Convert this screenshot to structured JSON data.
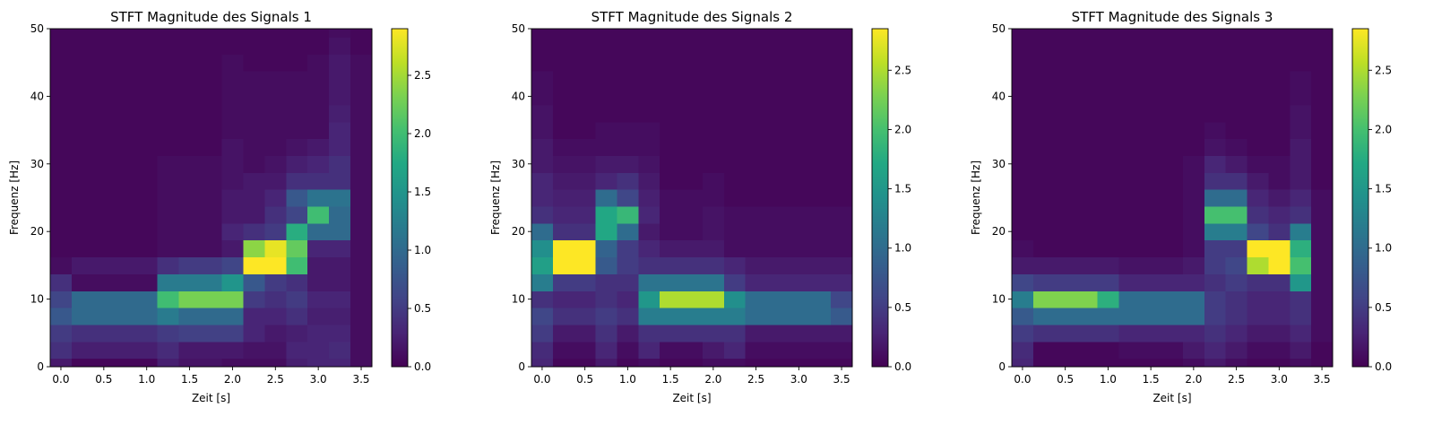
{
  "chart_data": [
    {
      "type": "heatmap",
      "title": "STFT Magnitude des Signals 1",
      "xlabel": "Zeit [s]",
      "ylabel": "Frequenz [Hz]",
      "xlim": [
        -0.125,
        3.625
      ],
      "ylim": [
        0,
        50
      ],
      "xticks": [
        "0.0",
        "0.5",
        "1.0",
        "1.5",
        "2.0",
        "2.5",
        "3.0",
        "3.5"
      ],
      "yticks": [
        "0",
        "10",
        "20",
        "30",
        "40",
        "50"
      ],
      "colorbar": {
        "range": [
          0,
          2.9
        ],
        "ticks": [
          "0.0",
          "0.5",
          "1.0",
          "1.5",
          "2.0",
          "2.5"
        ],
        "colormap": "viridis"
      },
      "t": [
        0,
        0.25,
        0.5,
        0.75,
        1.0,
        1.25,
        1.5,
        1.75,
        2.0,
        2.25,
        2.5,
        2.75,
        3.0,
        3.25,
        3.5
      ],
      "f": [
        0,
        2.5,
        5,
        7.5,
        10,
        12.5,
        15,
        17.5,
        20,
        22.5,
        25,
        27.5,
        30,
        32.5,
        35,
        37.5,
        40,
        42.5,
        45,
        47.5,
        50
      ],
      "magnitude": [
        [
          0.2,
          0.05,
          0.05,
          0.05,
          0.05,
          0.25,
          0.15,
          0.15,
          0.1,
          0.1,
          0.1,
          0.25,
          0.3,
          0.3,
          0.1
        ],
        [
          0.4,
          0.25,
          0.25,
          0.25,
          0.25,
          0.35,
          0.2,
          0.2,
          0.2,
          0.15,
          0.15,
          0.3,
          0.3,
          0.35,
          0.1
        ],
        [
          0.5,
          0.4,
          0.4,
          0.4,
          0.4,
          0.5,
          0.55,
          0.55,
          0.55,
          0.3,
          0.2,
          0.25,
          0.3,
          0.3,
          0.1
        ],
        [
          0.8,
          1.0,
          1.0,
          1.0,
          1.0,
          1.2,
          1.0,
          1.0,
          1.0,
          0.3,
          0.3,
          0.4,
          0.25,
          0.25,
          0.1
        ],
        [
          0.6,
          1.0,
          1.0,
          1.0,
          1.0,
          2.0,
          2.3,
          2.3,
          2.3,
          0.5,
          0.4,
          0.5,
          0.3,
          0.3,
          0.1
        ],
        [
          0.4,
          0.1,
          0.1,
          0.1,
          0.1,
          1.2,
          1.2,
          1.2,
          1.5,
          0.8,
          0.5,
          0.4,
          0.2,
          0.2,
          0.1
        ],
        [
          0.1,
          0.2,
          0.2,
          0.2,
          0.2,
          0.4,
          0.5,
          0.5,
          0.6,
          2.9,
          2.9,
          2.0,
          0.2,
          0.2,
          0.1
        ],
        [
          0.05,
          0.05,
          0.05,
          0.05,
          0.05,
          0.1,
          0.1,
          0.1,
          0.2,
          2.4,
          2.8,
          2.2,
          0.3,
          0.3,
          0.1
        ],
        [
          0.05,
          0.05,
          0.05,
          0.05,
          0.05,
          0.1,
          0.1,
          0.1,
          0.3,
          0.4,
          0.5,
          1.8,
          1.0,
          1.0,
          0.1
        ],
        [
          0.05,
          0.05,
          0.05,
          0.05,
          0.05,
          0.1,
          0.1,
          0.1,
          0.2,
          0.2,
          0.4,
          0.6,
          2.0,
          1.0,
          0.1
        ],
        [
          0.05,
          0.05,
          0.05,
          0.05,
          0.05,
          0.1,
          0.1,
          0.1,
          0.2,
          0.2,
          0.3,
          0.8,
          1.1,
          1.1,
          0.1
        ],
        [
          0.05,
          0.05,
          0.05,
          0.05,
          0.05,
          0.1,
          0.1,
          0.1,
          0.15,
          0.2,
          0.2,
          0.4,
          0.4,
          0.4,
          0.1
        ],
        [
          0.05,
          0.05,
          0.05,
          0.05,
          0.05,
          0.1,
          0.1,
          0.1,
          0.15,
          0.1,
          0.15,
          0.25,
          0.3,
          0.4,
          0.1
        ],
        [
          0.05,
          0.05,
          0.05,
          0.05,
          0.05,
          0.05,
          0.05,
          0.05,
          0.15,
          0.1,
          0.1,
          0.15,
          0.2,
          0.3,
          0.1
        ],
        [
          0.05,
          0.05,
          0.05,
          0.05,
          0.05,
          0.05,
          0.05,
          0.05,
          0.1,
          0.1,
          0.1,
          0.1,
          0.1,
          0.3,
          0.1
        ],
        [
          0.05,
          0.05,
          0.05,
          0.05,
          0.05,
          0.05,
          0.05,
          0.05,
          0.1,
          0.1,
          0.1,
          0.1,
          0.1,
          0.25,
          0.1
        ],
        [
          0.05,
          0.05,
          0.05,
          0.05,
          0.05,
          0.05,
          0.05,
          0.05,
          0.1,
          0.1,
          0.1,
          0.1,
          0.1,
          0.2,
          0.1
        ],
        [
          0.05,
          0.05,
          0.05,
          0.05,
          0.05,
          0.05,
          0.05,
          0.05,
          0.1,
          0.1,
          0.1,
          0.1,
          0.1,
          0.2,
          0.1
        ],
        [
          0.05,
          0.05,
          0.05,
          0.05,
          0.05,
          0.05,
          0.05,
          0.05,
          0.1,
          0.05,
          0.05,
          0.05,
          0.1,
          0.2,
          0.1
        ],
        [
          0.05,
          0.05,
          0.05,
          0.05,
          0.05,
          0.05,
          0.05,
          0.05,
          0.05,
          0.05,
          0.05,
          0.05,
          0.05,
          0.15,
          0.05
        ],
        [
          0.05,
          0.05,
          0.05,
          0.05,
          0.05,
          0.05,
          0.05,
          0.05,
          0.05,
          0.05,
          0.05,
          0.05,
          0.05,
          0.1,
          0.05
        ]
      ]
    },
    {
      "type": "heatmap",
      "title": "STFT Magnitude des Signals 2",
      "xlabel": "Zeit [s]",
      "ylabel": "Frequenz [Hz]",
      "xlim": [
        -0.125,
        3.625
      ],
      "ylim": [
        0,
        50
      ],
      "xticks": [
        "0.0",
        "0.5",
        "1.0",
        "1.5",
        "2.0",
        "2.5",
        "3.0",
        "3.5"
      ],
      "yticks": [
        "0",
        "10",
        "20",
        "30",
        "40",
        "50"
      ],
      "colorbar": {
        "range": [
          0,
          2.85
        ],
        "ticks": [
          "0.0",
          "0.5",
          "1.0",
          "1.5",
          "2.0",
          "2.5"
        ],
        "colormap": "viridis"
      },
      "t": [
        0,
        0.25,
        0.5,
        0.75,
        1.0,
        1.25,
        1.5,
        1.75,
        2.0,
        2.25,
        2.5,
        2.75,
        3.0,
        3.25,
        3.5
      ],
      "f": [
        0,
        2.5,
        5,
        7.5,
        10,
        12.5,
        15,
        17.5,
        20,
        22.5,
        25,
        27.5,
        30,
        32.5,
        35,
        37.5,
        40,
        42.5,
        45,
        47.5,
        50
      ],
      "magnitude": [
        [
          0.3,
          0.05,
          0.05,
          0.2,
          0.05,
          0.1,
          0.05,
          0.05,
          0.1,
          0.1,
          0.05,
          0.05,
          0.05,
          0.05,
          0.05
        ],
        [
          0.35,
          0.1,
          0.1,
          0.3,
          0.1,
          0.3,
          0.1,
          0.1,
          0.2,
          0.3,
          0.1,
          0.1,
          0.1,
          0.1,
          0.1
        ],
        [
          0.5,
          0.2,
          0.2,
          0.4,
          0.2,
          0.4,
          0.4,
          0.4,
          0.4,
          0.4,
          0.2,
          0.2,
          0.2,
          0.2,
          0.2
        ],
        [
          0.6,
          0.4,
          0.4,
          0.5,
          0.4,
          1.2,
          1.2,
          1.2,
          1.2,
          1.2,
          1.0,
          1.0,
          1.0,
          1.0,
          0.8
        ],
        [
          0.4,
          0.3,
          0.3,
          0.4,
          0.3,
          1.5,
          2.5,
          2.5,
          2.5,
          1.4,
          1.0,
          1.0,
          1.0,
          1.0,
          0.6
        ],
        [
          1.2,
          0.5,
          0.5,
          0.4,
          0.4,
          1.1,
          1.1,
          1.1,
          1.1,
          0.5,
          0.3,
          0.3,
          0.3,
          0.3,
          0.3
        ],
        [
          1.6,
          2.85,
          2.85,
          0.8,
          0.5,
          0.4,
          0.4,
          0.4,
          0.4,
          0.3,
          0.2,
          0.2,
          0.2,
          0.2,
          0.2
        ],
        [
          1.4,
          2.85,
          2.85,
          0.9,
          0.5,
          0.3,
          0.2,
          0.2,
          0.2,
          0.1,
          0.1,
          0.1,
          0.1,
          0.1,
          0.1
        ],
        [
          1.0,
          0.4,
          0.4,
          1.7,
          1.0,
          0.2,
          0.1,
          0.1,
          0.15,
          0.1,
          0.1,
          0.1,
          0.1,
          0.1,
          0.1
        ],
        [
          0.4,
          0.3,
          0.3,
          1.7,
          1.9,
          0.3,
          0.1,
          0.1,
          0.15,
          0.1,
          0.1,
          0.1,
          0.1,
          0.1,
          0.1
        ],
        [
          0.3,
          0.25,
          0.25,
          1.0,
          0.6,
          0.25,
          0.1,
          0.1,
          0.1,
          0.05,
          0.05,
          0.05,
          0.05,
          0.05,
          0.05
        ],
        [
          0.3,
          0.2,
          0.2,
          0.3,
          0.4,
          0.2,
          0.05,
          0.05,
          0.1,
          0.05,
          0.05,
          0.05,
          0.05,
          0.05,
          0.05
        ],
        [
          0.2,
          0.15,
          0.15,
          0.2,
          0.2,
          0.15,
          0.05,
          0.05,
          0.05,
          0.05,
          0.05,
          0.05,
          0.05,
          0.05,
          0.05
        ],
        [
          0.2,
          0.1,
          0.1,
          0.1,
          0.1,
          0.1,
          0.05,
          0.05,
          0.05,
          0.05,
          0.05,
          0.05,
          0.05,
          0.05,
          0.05
        ],
        [
          0.15,
          0.05,
          0.05,
          0.1,
          0.1,
          0.1,
          0.05,
          0.05,
          0.05,
          0.05,
          0.05,
          0.05,
          0.05,
          0.05,
          0.05
        ],
        [
          0.15,
          0.05,
          0.05,
          0.05,
          0.05,
          0.05,
          0.05,
          0.05,
          0.05,
          0.05,
          0.05,
          0.05,
          0.05,
          0.05,
          0.05
        ],
        [
          0.1,
          0.05,
          0.05,
          0.05,
          0.05,
          0.05,
          0.05,
          0.05,
          0.05,
          0.05,
          0.05,
          0.05,
          0.05,
          0.05,
          0.05
        ],
        [
          0.1,
          0.05,
          0.05,
          0.05,
          0.05,
          0.05,
          0.05,
          0.05,
          0.05,
          0.05,
          0.05,
          0.05,
          0.05,
          0.05,
          0.05
        ],
        [
          0.05,
          0.05,
          0.05,
          0.05,
          0.05,
          0.05,
          0.05,
          0.05,
          0.05,
          0.05,
          0.05,
          0.05,
          0.05,
          0.05,
          0.05
        ],
        [
          0.05,
          0.05,
          0.05,
          0.05,
          0.05,
          0.05,
          0.05,
          0.05,
          0.05,
          0.05,
          0.05,
          0.05,
          0.05,
          0.05,
          0.05
        ],
        [
          0.05,
          0.05,
          0.05,
          0.05,
          0.05,
          0.05,
          0.05,
          0.05,
          0.05,
          0.05,
          0.05,
          0.05,
          0.05,
          0.05,
          0.05
        ]
      ]
    },
    {
      "type": "heatmap",
      "title": "STFT Magnitude des Signals 3",
      "xlabel": "Zeit [s]",
      "ylabel": "Frequenz [Hz]",
      "xlim": [
        -0.125,
        3.625
      ],
      "ylim": [
        0,
        50
      ],
      "xticks": [
        "0.0",
        "0.5",
        "1.0",
        "1.5",
        "2.0",
        "2.5",
        "3.0",
        "3.5"
      ],
      "yticks": [
        "0",
        "10",
        "20",
        "30",
        "40",
        "50"
      ],
      "colorbar": {
        "range": [
          0,
          2.85
        ],
        "ticks": [
          "0.0",
          "0.5",
          "1.0",
          "1.5",
          "2.0",
          "2.5"
        ],
        "colormap": "viridis"
      },
      "t": [
        0,
        0.25,
        0.5,
        0.75,
        1.0,
        1.25,
        1.5,
        1.75,
        2.0,
        2.25,
        2.5,
        2.75,
        3.0,
        3.25,
        3.5
      ],
      "f": [
        0,
        2.5,
        5,
        7.5,
        10,
        12.5,
        15,
        17.5,
        20,
        22.5,
        25,
        27.5,
        30,
        32.5,
        35,
        37.5,
        40,
        42.5,
        45,
        47.5,
        50
      ],
      "magnitude": [
        [
          0.3,
          0.05,
          0.05,
          0.05,
          0.05,
          0.05,
          0.05,
          0.05,
          0.1,
          0.2,
          0.1,
          0.05,
          0.05,
          0.1,
          0.05
        ],
        [
          0.35,
          0.05,
          0.05,
          0.05,
          0.05,
          0.1,
          0.1,
          0.1,
          0.2,
          0.3,
          0.2,
          0.1,
          0.1,
          0.2,
          0.05
        ],
        [
          0.5,
          0.4,
          0.4,
          0.4,
          0.4,
          0.3,
          0.3,
          0.3,
          0.3,
          0.4,
          0.3,
          0.2,
          0.2,
          0.3,
          0.1
        ],
        [
          0.8,
          1.0,
          1.0,
          1.0,
          1.0,
          1.0,
          1.0,
          1.0,
          1.0,
          0.5,
          0.4,
          0.3,
          0.3,
          0.4,
          0.1
        ],
        [
          1.2,
          2.3,
          2.3,
          2.3,
          1.8,
          1.0,
          1.0,
          1.0,
          1.0,
          0.5,
          0.4,
          0.3,
          0.3,
          0.4,
          0.1
        ],
        [
          0.6,
          0.5,
          0.5,
          0.5,
          0.5,
          0.3,
          0.3,
          0.3,
          0.3,
          0.4,
          0.5,
          0.4,
          0.4,
          1.5,
          0.1
        ],
        [
          0.2,
          0.2,
          0.2,
          0.2,
          0.2,
          0.15,
          0.15,
          0.15,
          0.2,
          0.5,
          0.6,
          2.5,
          2.85,
          2.0,
          0.1
        ],
        [
          0.1,
          0.05,
          0.05,
          0.05,
          0.05,
          0.05,
          0.05,
          0.05,
          0.1,
          0.5,
          0.5,
          2.85,
          2.85,
          1.8,
          0.1
        ],
        [
          0.05,
          0.05,
          0.05,
          0.05,
          0.05,
          0.05,
          0.05,
          0.05,
          0.1,
          1.2,
          1.2,
          0.6,
          0.4,
          1.2,
          0.1
        ],
        [
          0.05,
          0.05,
          0.05,
          0.05,
          0.05,
          0.05,
          0.05,
          0.05,
          0.1,
          2.0,
          2.0,
          0.4,
          0.3,
          0.4,
          0.1
        ],
        [
          0.05,
          0.05,
          0.05,
          0.05,
          0.05,
          0.05,
          0.05,
          0.05,
          0.1,
          1.0,
          1.0,
          0.3,
          0.2,
          0.3,
          0.1
        ],
        [
          0.05,
          0.05,
          0.05,
          0.05,
          0.05,
          0.05,
          0.05,
          0.05,
          0.1,
          0.4,
          0.4,
          0.2,
          0.1,
          0.2,
          0.05
        ],
        [
          0.05,
          0.05,
          0.05,
          0.05,
          0.05,
          0.05,
          0.05,
          0.05,
          0.1,
          0.3,
          0.2,
          0.1,
          0.1,
          0.2,
          0.05
        ],
        [
          0.05,
          0.05,
          0.05,
          0.05,
          0.05,
          0.05,
          0.05,
          0.05,
          0.05,
          0.15,
          0.1,
          0.05,
          0.05,
          0.2,
          0.05
        ],
        [
          0.05,
          0.05,
          0.05,
          0.05,
          0.05,
          0.05,
          0.05,
          0.05,
          0.05,
          0.1,
          0.05,
          0.05,
          0.05,
          0.15,
          0.05
        ],
        [
          0.05,
          0.05,
          0.05,
          0.05,
          0.05,
          0.05,
          0.05,
          0.05,
          0.05,
          0.05,
          0.05,
          0.05,
          0.05,
          0.15,
          0.05
        ],
        [
          0.05,
          0.05,
          0.05,
          0.05,
          0.05,
          0.05,
          0.05,
          0.05,
          0.05,
          0.05,
          0.05,
          0.05,
          0.05,
          0.1,
          0.05
        ],
        [
          0.05,
          0.05,
          0.05,
          0.05,
          0.05,
          0.05,
          0.05,
          0.05,
          0.05,
          0.05,
          0.05,
          0.05,
          0.05,
          0.1,
          0.05
        ],
        [
          0.05,
          0.05,
          0.05,
          0.05,
          0.05,
          0.05,
          0.05,
          0.05,
          0.05,
          0.05,
          0.05,
          0.05,
          0.05,
          0.05,
          0.05
        ],
        [
          0.05,
          0.05,
          0.05,
          0.05,
          0.05,
          0.05,
          0.05,
          0.05,
          0.05,
          0.05,
          0.05,
          0.05,
          0.05,
          0.05,
          0.05
        ],
        [
          0.05,
          0.05,
          0.05,
          0.05,
          0.05,
          0.05,
          0.05,
          0.05,
          0.05,
          0.05,
          0.05,
          0.05,
          0.05,
          0.05,
          0.05
        ]
      ]
    }
  ]
}
